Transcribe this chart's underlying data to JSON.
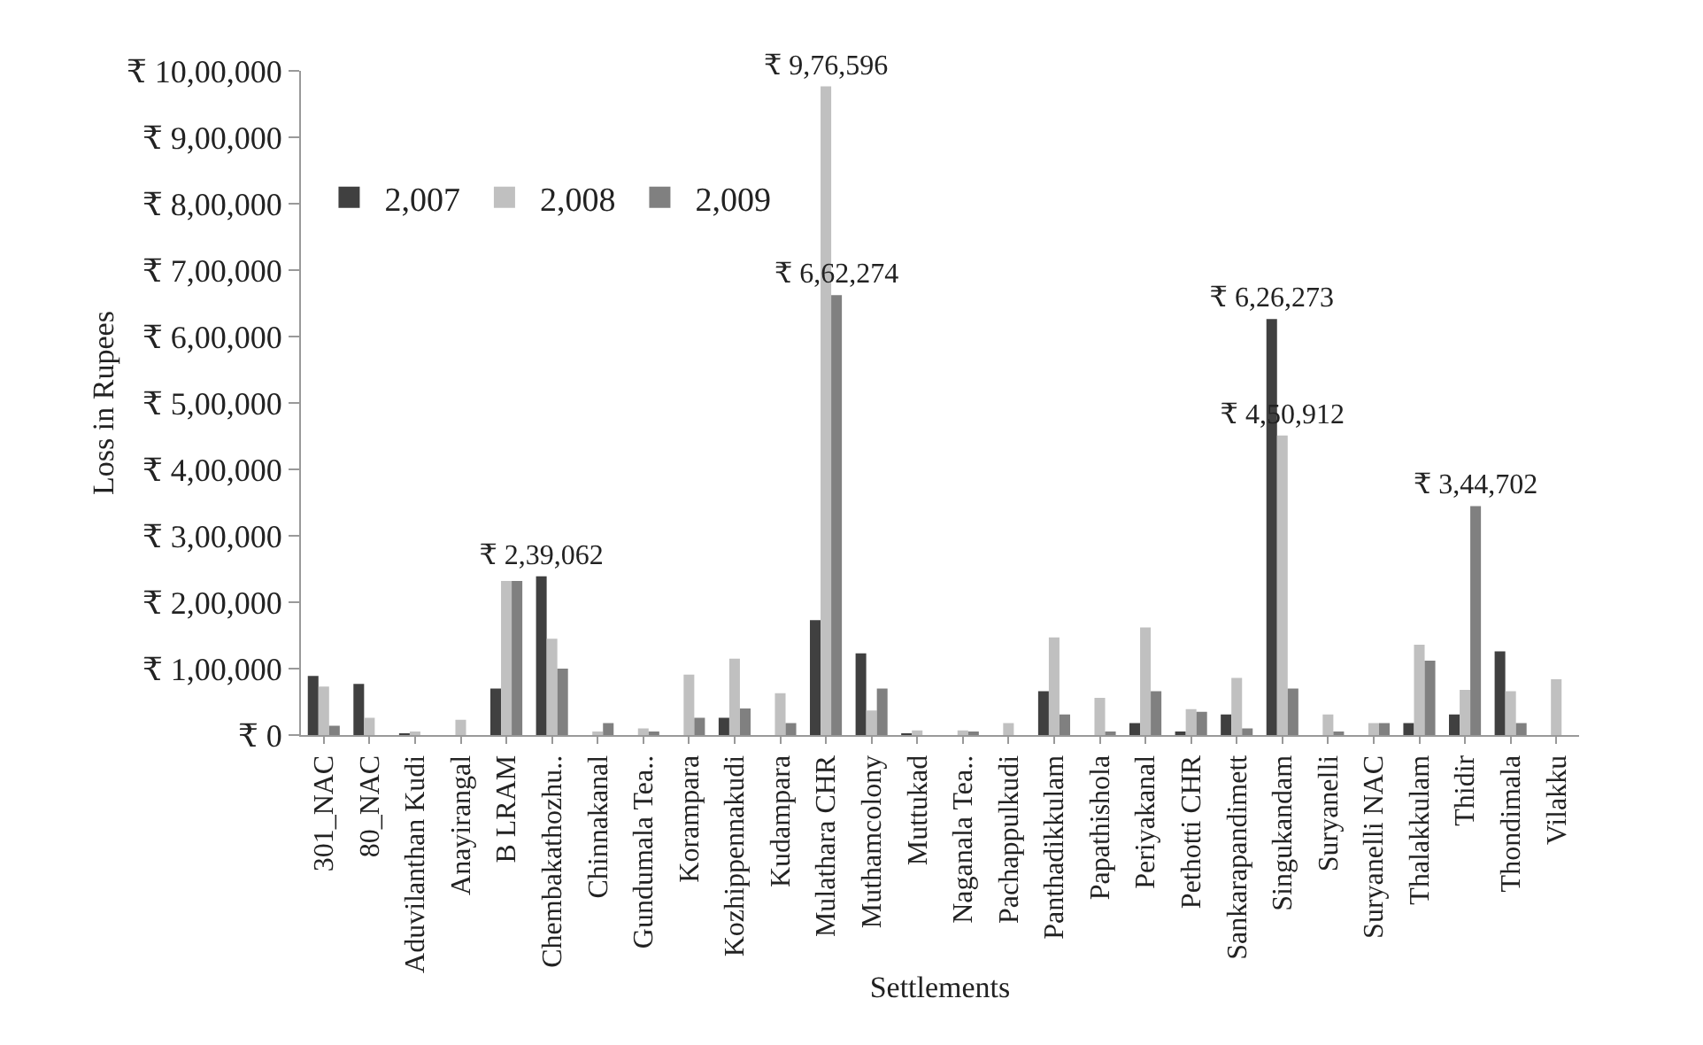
{
  "chart_data": {
    "type": "bar",
    "xlabel": "Settlements",
    "ylabel": "Loss in Rupees",
    "categories": [
      "301_NAC",
      "80_NAC",
      "Aduvilanthan Kudi",
      "Anayirangal",
      "B LRAM",
      "Chembakathozhu..",
      "Chinnakanal",
      "Gundumala Tea..",
      "Korampara",
      "Kozhippennakudi",
      "Kudampara",
      "Mulathara CHR",
      "Muthamcolony",
      "Muttukad",
      "Naganala Tea..",
      "Pachappulkudi",
      "Panthadikkulam",
      "Papathishola",
      "Periyakanal",
      "Pethotti CHR",
      "Sankarapandimett",
      "Singukandam",
      "Suryanelli",
      "Suryanelli NAC",
      "Thalakkulam",
      "Thidir",
      "Thondimala",
      "Vilakku"
    ],
    "series": [
      {
        "name": "2,007",
        "color": "#404040",
        "values": [
          89000,
          77000,
          2000,
          0,
          70000,
          239062,
          0,
          0,
          0,
          26000,
          0,
          173000,
          123000,
          2000,
          0,
          0,
          66000,
          0,
          18000,
          3000,
          31000,
          626273,
          0,
          0,
          18000,
          31000,
          126000,
          0
        ],
        "value_labels": [
          null,
          null,
          null,
          null,
          null,
          "₹ 2,39,062",
          null,
          null,
          null,
          null,
          null,
          null,
          null,
          null,
          null,
          null,
          null,
          null,
          null,
          null,
          null,
          "₹ 6,26,273",
          null,
          null,
          null,
          null,
          null,
          null
        ]
      },
      {
        "name": "2,008",
        "color": "#c0c0c0",
        "values": [
          73000,
          26000,
          3000,
          23000,
          232000,
          145000,
          5000,
          10000,
          91000,
          115000,
          63000,
          976596,
          37000,
          7000,
          7000,
          18000,
          147000,
          56000,
          162000,
          39000,
          86000,
          450912,
          31000,
          18000,
          136000,
          68000,
          66000,
          84000
        ],
        "value_labels": [
          null,
          null,
          null,
          null,
          null,
          null,
          null,
          null,
          null,
          null,
          null,
          "₹ 9,76,596",
          null,
          null,
          null,
          null,
          null,
          null,
          null,
          null,
          null,
          "₹ 4,50,912",
          null,
          null,
          null,
          null,
          null,
          null
        ]
      },
      {
        "name": "2,009",
        "color": "#808080",
        "values": [
          14000,
          0,
          null,
          0,
          232000,
          100000,
          18000,
          5000,
          26000,
          40000,
          18000,
          662274,
          70000,
          null,
          3000,
          0,
          31000,
          3000,
          66000,
          35000,
          10000,
          70000,
          3000,
          18000,
          112000,
          344702,
          18000,
          0
        ],
        "value_labels": [
          null,
          null,
          null,
          null,
          null,
          null,
          null,
          null,
          null,
          null,
          null,
          "₹ 6,62,274",
          null,
          null,
          null,
          null,
          null,
          null,
          null,
          null,
          null,
          null,
          null,
          null,
          null,
          "₹ 3,44,702",
          null,
          null
        ]
      }
    ],
    "ylim": [
      0,
      1000000
    ],
    "yticks": [
      {
        "value": 0,
        "label": "₹ 0"
      },
      {
        "value": 100000,
        "label": "₹ 1,00,000"
      },
      {
        "value": 200000,
        "label": "₹ 2,00,000"
      },
      {
        "value": 300000,
        "label": "₹ 3,00,000"
      },
      {
        "value": 400000,
        "label": "₹ 4,00,000"
      },
      {
        "value": 500000,
        "label": "₹ 5,00,000"
      },
      {
        "value": 600000,
        "label": "₹ 6,00,000"
      },
      {
        "value": 700000,
        "label": "₹ 7,00,000"
      },
      {
        "value": 800000,
        "label": "₹ 8,00,000"
      },
      {
        "value": 900000,
        "label": "₹ 9,00,000"
      },
      {
        "value": 1000000,
        "label": "₹ 10,00,000"
      }
    ],
    "grid": false,
    "legend": "top left"
  }
}
